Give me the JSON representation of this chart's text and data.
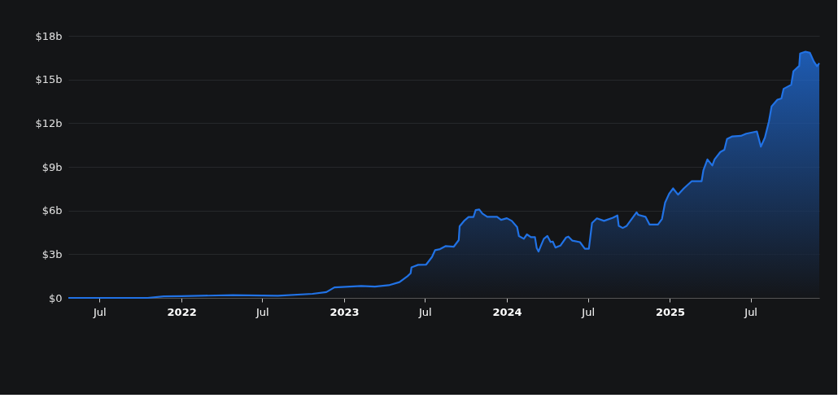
{
  "chart_data": {
    "type": "area",
    "x": [
      "2021-04-22",
      "2021-10-17",
      "2021-11-22",
      "2022-01-01",
      "2022-04-26",
      "2022-08-05",
      "2022-10-22",
      "2022-11-22",
      "2022-12-10",
      "2023-02-08",
      "2023-03-11",
      "2023-04-11",
      "2023-05-05",
      "2023-05-23",
      "2023-05-30",
      "2023-06-01",
      "2023-06-16",
      "2023-07-04",
      "2023-07-17",
      "2023-07-24",
      "2023-08-04",
      "2023-08-17",
      "2023-09-04",
      "2023-09-15",
      "2023-09-17",
      "2023-09-28",
      "2023-10-07",
      "2023-10-18",
      "2023-10-23",
      "2023-10-31",
      "2023-11-07",
      "2023-11-18",
      "2023-12-10",
      "2023-12-19",
      "2024-01-01",
      "2024-01-12",
      "2024-01-24",
      "2024-01-28",
      "2024-02-08",
      "2024-02-15",
      "2024-02-24",
      "2024-03-04",
      "2024-03-08",
      "2024-03-12",
      "2024-03-17",
      "2024-03-24",
      "2024-04-01",
      "2024-04-08",
      "2024-04-13",
      "2024-04-19",
      "2024-04-30",
      "2024-05-13",
      "2024-05-18",
      "2024-05-27",
      "2024-06-13",
      "2024-06-24",
      "2024-07-03",
      "2024-07-10",
      "2024-07-21",
      "2024-08-06",
      "2024-08-26",
      "2024-09-05",
      "2024-09-08",
      "2024-09-17",
      "2024-09-26",
      "2024-10-18",
      "2024-10-22",
      "2024-11-07",
      "2024-11-16",
      "2024-12-05",
      "2024-12-14",
      "2024-12-21",
      "2024-12-30",
      "2025-01-08",
      "2025-01-19",
      "2025-02-01",
      "2025-02-19",
      "2025-03-13",
      "2025-03-17",
      "2025-03-26",
      "2025-04-06",
      "2025-04-11",
      "2025-04-24",
      "2025-05-03",
      "2025-05-09",
      "2025-05-21",
      "2025-06-09",
      "2025-06-21",
      "2025-07-15",
      "2025-07-24",
      "2025-08-02",
      "2025-08-11",
      "2025-08-17",
      "2025-08-30",
      "2025-09-08",
      "2025-09-13",
      "2025-09-30",
      "2025-10-05",
      "2025-10-18",
      "2025-10-20",
      "2025-11-01",
      "2025-11-11",
      "2025-11-20",
      "2025-11-27",
      "2025-12-02"
    ],
    "series": [
      {
        "color": "#2172e5",
        "values": [
          0.0,
          0.0,
          0.1,
          0.12,
          0.19,
          0.15,
          0.28,
          0.4,
          0.72,
          0.82,
          0.78,
          0.87,
          1.08,
          1.49,
          1.69,
          2.1,
          2.27,
          2.29,
          2.81,
          3.28,
          3.35,
          3.56,
          3.52,
          3.97,
          4.92,
          5.32,
          5.55,
          5.55,
          6.03,
          6.07,
          5.79,
          5.57,
          5.57,
          5.36,
          5.47,
          5.29,
          4.86,
          4.25,
          4.06,
          4.36,
          4.17,
          4.17,
          3.42,
          3.18,
          3.56,
          4.06,
          4.25,
          3.84,
          3.87,
          3.46,
          3.59,
          4.15,
          4.21,
          3.93,
          3.83,
          3.37,
          3.37,
          5.14,
          5.46,
          5.29,
          5.51,
          5.66,
          4.95,
          4.8,
          4.95,
          5.88,
          5.7,
          5.57,
          5.04,
          5.04,
          5.42,
          6.54,
          7.15,
          7.52,
          7.09,
          7.52,
          8.02,
          8.02,
          8.77,
          9.51,
          9.09,
          9.51,
          10.02,
          10.17,
          10.91,
          11.09,
          11.13,
          11.28,
          11.43,
          10.39,
          11.01,
          12.12,
          13.15,
          13.61,
          13.7,
          14.36,
          14.64,
          15.57,
          15.94,
          16.78,
          16.91,
          16.83,
          16.22,
          15.91,
          16.12
        ]
      }
    ],
    "xlim": [
      "2021-04-22",
      "2025-12-02"
    ],
    "xticks": [
      {
        "value": "2021-07-01",
        "label": "Jul"
      },
      {
        "value": "2022-01-01",
        "label": "2022"
      },
      {
        "value": "2022-07-01",
        "label": "Jul"
      },
      {
        "value": "2023-01-01",
        "label": "2023"
      },
      {
        "value": "2023-07-01",
        "label": "Jul"
      },
      {
        "value": "2024-01-01",
        "label": "2024"
      },
      {
        "value": "2024-07-01",
        "label": "Jul"
      },
      {
        "value": "2025-01-01",
        "label": "2025"
      },
      {
        "value": "2025-07-01",
        "label": "Jul"
      }
    ],
    "ylim": [
      0,
      18
    ],
    "yticks": [
      {
        "value": 0,
        "label": "$0"
      },
      {
        "value": 3,
        "label": "$3b"
      },
      {
        "value": 6,
        "label": "$6b"
      },
      {
        "value": 9,
        "label": "$9b"
      },
      {
        "value": 12,
        "label": "$12b"
      },
      {
        "value": 15,
        "label": "$15b"
      },
      {
        "value": 18,
        "label": "$18b"
      }
    ],
    "grid": "y"
  }
}
